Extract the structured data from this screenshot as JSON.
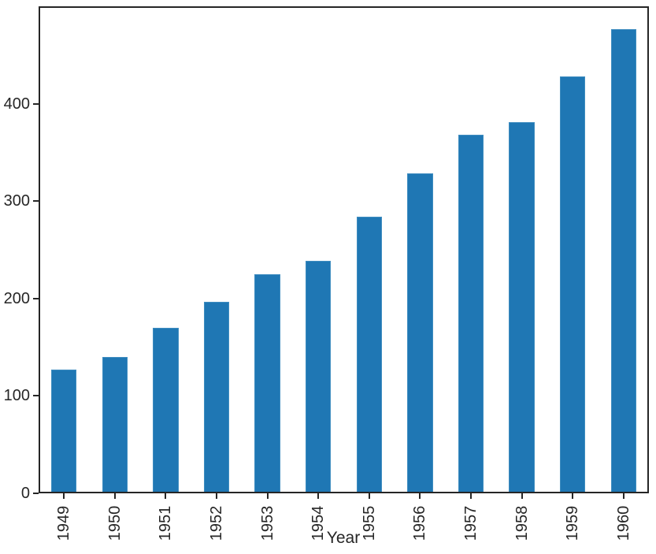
{
  "figure": {
    "background": "#ffffff"
  },
  "colors": {
    "bar_fill": "#1f77b4",
    "bar_edge": "#3f8dc0",
    "axis": "#262626",
    "text": "#262626"
  },
  "chart_data": {
    "type": "bar",
    "title": "",
    "xlabel": "Year",
    "ylabel": "",
    "categories": [
      "1949",
      "1950",
      "1951",
      "1952",
      "1953",
      "1954",
      "1955",
      "1956",
      "1957",
      "1958",
      "1959",
      "1960"
    ],
    "values": [
      126.67,
      139.67,
      170.17,
      197.0,
      225.0,
      238.92,
      284.0,
      328.25,
      368.42,
      381.0,
      428.33,
      476.17
    ],
    "ylim": [
      0,
      500
    ],
    "yticks": [
      0,
      100,
      200,
      300,
      400
    ],
    "bar_width_fraction": 0.5,
    "x_tick_rotation_deg": 90,
    "grid": false,
    "legend_position": "none"
  }
}
